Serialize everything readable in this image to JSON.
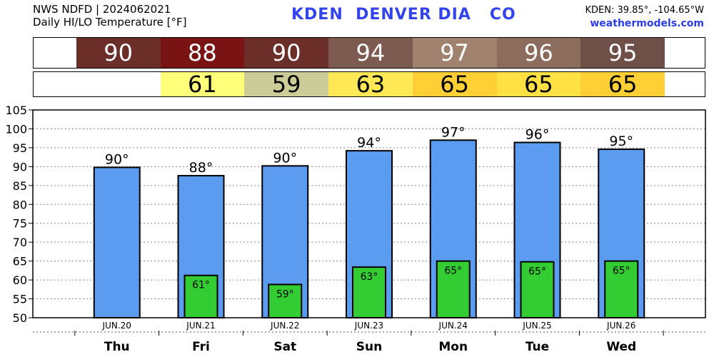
{
  "header": {
    "line1": "NWS NDFD | 2024062021",
    "line2": "Daily HI/LO Temperature [°F]",
    "station": "KDEN  DENVER DIA   CO",
    "coords": "KDEN: 39.85°, -104.65°W",
    "site": "weathermodels.com"
  },
  "colors": {
    "hi_bar": "#5b9cf0",
    "lo_bar": "#33cc33",
    "hi_cells": [
      "#6b2e28",
      "#7a1414",
      "#6b2e28",
      "#7d5a4f",
      "#a0826f",
      "#8c6c5c",
      "#6e5048"
    ],
    "lo_cells": [
      "#ffffff",
      "#ffff7a",
      "#cccc99",
      "#ffe855",
      "#ffd035",
      "#ffe045",
      "#ffd035"
    ]
  },
  "strip": {
    "hi": [
      "90",
      "88",
      "90",
      "94",
      "97",
      "96",
      "95"
    ],
    "lo": [
      "",
      "61",
      "59",
      "63",
      "65",
      "65",
      "65"
    ]
  },
  "chart_data": {
    "type": "bar",
    "categories": [
      "Thu",
      "Fri",
      "Sat",
      "Sun",
      "Mon",
      "Tue",
      "Wed"
    ],
    "dates": [
      "JUN.20",
      "JUN.21",
      "JUN.22",
      "JUN.23",
      "JUN.24",
      "JUN.25",
      "JUN.26"
    ],
    "series": [
      {
        "values": [
          89.8,
          87.6,
          90.2,
          94.2,
          97.0,
          96.4,
          94.6
        ],
        "labels": [
          "90°",
          "88°",
          "90°",
          "94°",
          "97°",
          "96°",
          "95°"
        ]
      },
      {
        "values": [
          null,
          61.2,
          58.8,
          63.4,
          65.0,
          64.8,
          65.0
        ],
        "labels": [
          "",
          "61°",
          "59°",
          "63°",
          "65°",
          "65°",
          "65°"
        ]
      }
    ],
    "ylim": [
      50,
      105
    ],
    "yticks": [
      50,
      55,
      60,
      65,
      70,
      75,
      80,
      85,
      90,
      95,
      100,
      105
    ],
    "grid": true
  }
}
